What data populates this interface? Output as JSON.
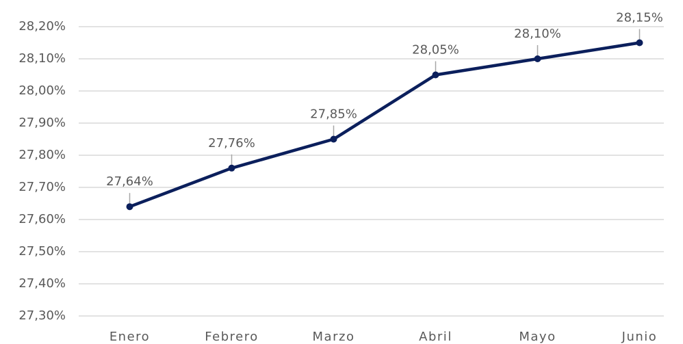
{
  "chart_data": {
    "type": "line",
    "categories": [
      "Enero",
      "Febrero",
      "Marzo",
      "Abril",
      "Mayo",
      "Junio"
    ],
    "series": [
      {
        "name": "Serie",
        "color": "#0b1f5c",
        "values": [
          27.64,
          27.76,
          27.85,
          28.05,
          28.1,
          28.15
        ],
        "value_labels": [
          "27,64%",
          "27,76%",
          "27,85%",
          "28,05%",
          "28,10%",
          "28,15%"
        ]
      }
    ],
    "ylim": [
      27.3,
      28.2
    ],
    "yticks": [
      {
        "value": 27.3,
        "label": "27,30%"
      },
      {
        "value": 27.4,
        "label": "27,40%"
      },
      {
        "value": 27.5,
        "label": "27,50%"
      },
      {
        "value": 27.6,
        "label": "27,60%"
      },
      {
        "value": 27.7,
        "label": "27,70%"
      },
      {
        "value": 27.8,
        "label": "27,80%"
      },
      {
        "value": 27.9,
        "label": "27,90%"
      },
      {
        "value": 28.0,
        "label": "28,00%"
      },
      {
        "value": 28.1,
        "label": "28,10%"
      },
      {
        "value": 28.2,
        "label": "28,20%"
      }
    ],
    "grid": true
  }
}
